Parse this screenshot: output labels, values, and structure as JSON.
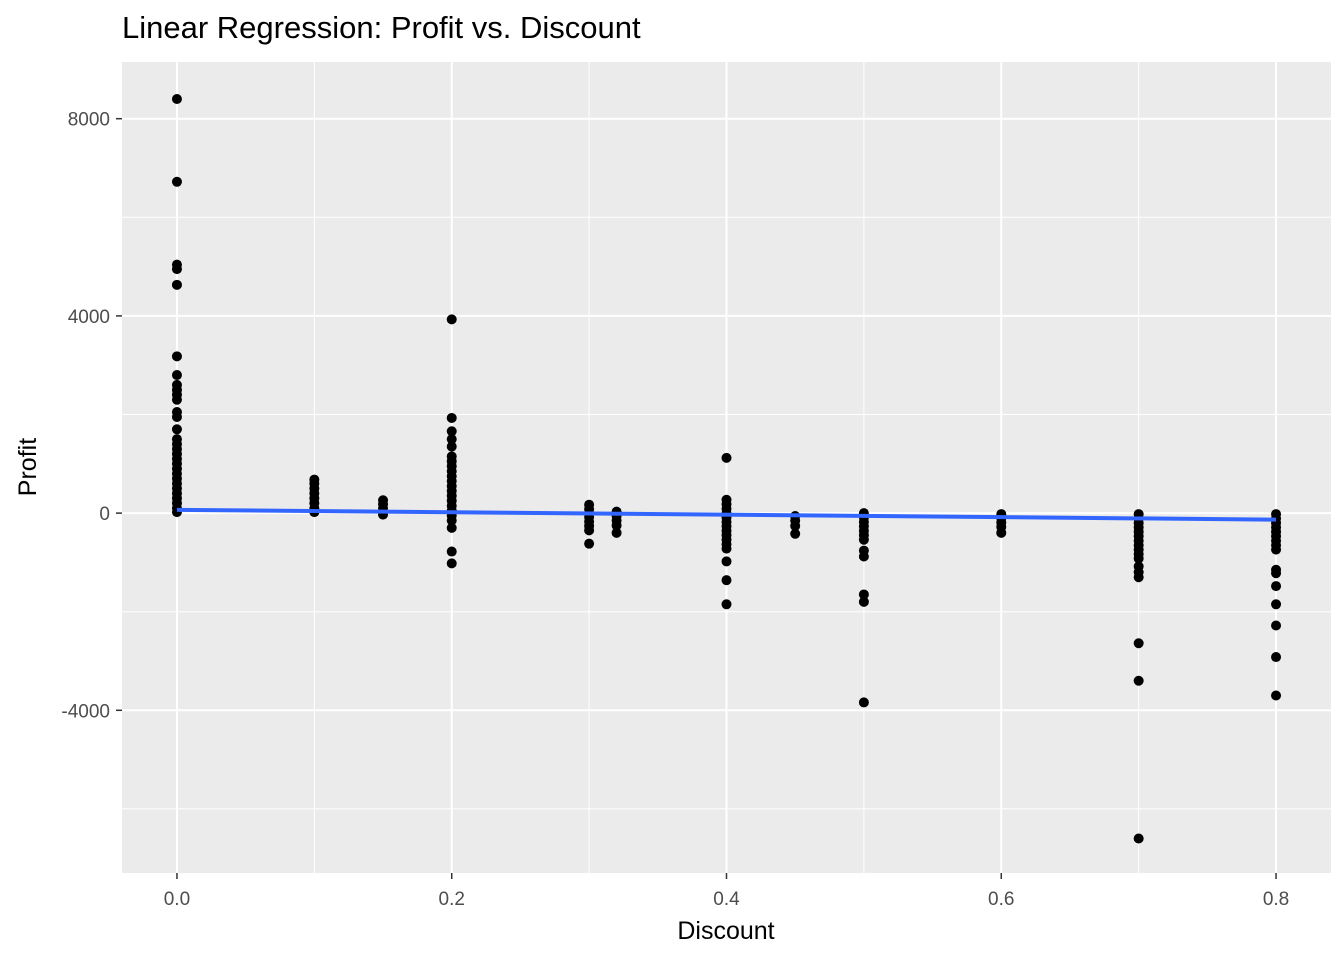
{
  "chart_data": {
    "type": "scatter",
    "title": "Linear Regression: Profit vs. Discount",
    "xlabel": "Discount",
    "ylabel": "Profit",
    "xlim": [
      -0.04,
      0.84
    ],
    "ylim": [
      -7300,
      9150
    ],
    "x_ticks": [
      0.0,
      0.2,
      0.4,
      0.6,
      0.8
    ],
    "x_tick_labels": [
      "0.0",
      "0.2",
      "0.4",
      "0.6",
      "0.8"
    ],
    "x_minor_ticks": [
      0.1,
      0.3,
      0.5,
      0.7
    ],
    "y_ticks": [
      -4000,
      0,
      4000,
      8000
    ],
    "y_tick_labels": [
      "-4000",
      "0",
      "4000",
      "8000"
    ],
    "y_minor_ticks": [
      -6000,
      -2000,
      2000,
      6000
    ],
    "grid": true,
    "legend": "none",
    "colors": {
      "panel_background": "#ebebeb",
      "grid": "#ffffff",
      "points": "#000000",
      "regression_line": "#3366ff"
    },
    "series": [
      {
        "points": [
          {
            "x": 0.0,
            "y": 8400
          },
          {
            "x": 0.0,
            "y": 6720
          },
          {
            "x": 0.0,
            "y": 5040
          },
          {
            "x": 0.0,
            "y": 4950
          },
          {
            "x": 0.0,
            "y": 4630
          },
          {
            "x": 0.0,
            "y": 3180
          },
          {
            "x": 0.0,
            "y": 2800
          },
          {
            "x": 0.0,
            "y": 2600
          },
          {
            "x": 0.0,
            "y": 2500
          },
          {
            "x": 0.0,
            "y": 2400
          },
          {
            "x": 0.0,
            "y": 2300
          },
          {
            "x": 0.0,
            "y": 2050
          },
          {
            "x": 0.0,
            "y": 1950
          },
          {
            "x": 0.0,
            "y": 1700
          },
          {
            "x": 0.0,
            "y": 1500
          },
          {
            "x": 0.0,
            "y": 1400
          },
          {
            "x": 0.0,
            "y": 1300
          },
          {
            "x": 0.0,
            "y": 1200
          },
          {
            "x": 0.0,
            "y": 1100
          },
          {
            "x": 0.0,
            "y": 1000
          },
          {
            "x": 0.0,
            "y": 900
          },
          {
            "x": 0.0,
            "y": 800
          },
          {
            "x": 0.0,
            "y": 700
          },
          {
            "x": 0.0,
            "y": 600
          },
          {
            "x": 0.0,
            "y": 500
          },
          {
            "x": 0.0,
            "y": 400
          },
          {
            "x": 0.0,
            "y": 300
          },
          {
            "x": 0.0,
            "y": 200
          },
          {
            "x": 0.0,
            "y": 100
          },
          {
            "x": 0.0,
            "y": 20
          },
          {
            "x": 0.1,
            "y": 680
          },
          {
            "x": 0.1,
            "y": 600
          },
          {
            "x": 0.1,
            "y": 500
          },
          {
            "x": 0.1,
            "y": 400
          },
          {
            "x": 0.1,
            "y": 300
          },
          {
            "x": 0.1,
            "y": 200
          },
          {
            "x": 0.1,
            "y": 100
          },
          {
            "x": 0.1,
            "y": 20
          },
          {
            "x": 0.15,
            "y": 260
          },
          {
            "x": 0.15,
            "y": 180
          },
          {
            "x": 0.15,
            "y": 100
          },
          {
            "x": 0.15,
            "y": 20
          },
          {
            "x": 0.15,
            "y": -30
          },
          {
            "x": 0.2,
            "y": 3930
          },
          {
            "x": 0.2,
            "y": 1930
          },
          {
            "x": 0.2,
            "y": 1660
          },
          {
            "x": 0.2,
            "y": 1500
          },
          {
            "x": 0.2,
            "y": 1350
          },
          {
            "x": 0.2,
            "y": 1150
          },
          {
            "x": 0.2,
            "y": 1050
          },
          {
            "x": 0.2,
            "y": 950
          },
          {
            "x": 0.2,
            "y": 850
          },
          {
            "x": 0.2,
            "y": 750
          },
          {
            "x": 0.2,
            "y": 650
          },
          {
            "x": 0.2,
            "y": 550
          },
          {
            "x": 0.2,
            "y": 450
          },
          {
            "x": 0.2,
            "y": 350
          },
          {
            "x": 0.2,
            "y": 250
          },
          {
            "x": 0.2,
            "y": 150
          },
          {
            "x": 0.2,
            "y": 50
          },
          {
            "x": 0.2,
            "y": -50
          },
          {
            "x": 0.2,
            "y": -150
          },
          {
            "x": 0.2,
            "y": -300
          },
          {
            "x": 0.2,
            "y": -780
          },
          {
            "x": 0.2,
            "y": -1020
          },
          {
            "x": 0.3,
            "y": 170
          },
          {
            "x": 0.3,
            "y": 80
          },
          {
            "x": 0.3,
            "y": 0
          },
          {
            "x": 0.3,
            "y": -80
          },
          {
            "x": 0.3,
            "y": -170
          },
          {
            "x": 0.3,
            "y": -260
          },
          {
            "x": 0.3,
            "y": -350
          },
          {
            "x": 0.3,
            "y": -620
          },
          {
            "x": 0.32,
            "y": 30
          },
          {
            "x": 0.32,
            "y": -60
          },
          {
            "x": 0.32,
            "y": -150
          },
          {
            "x": 0.32,
            "y": -250
          },
          {
            "x": 0.32,
            "y": -400
          },
          {
            "x": 0.4,
            "y": 1120
          },
          {
            "x": 0.4,
            "y": 270
          },
          {
            "x": 0.4,
            "y": 180
          },
          {
            "x": 0.4,
            "y": 90
          },
          {
            "x": 0.4,
            "y": 0
          },
          {
            "x": 0.4,
            "y": -90
          },
          {
            "x": 0.4,
            "y": -180
          },
          {
            "x": 0.4,
            "y": -270
          },
          {
            "x": 0.4,
            "y": -360
          },
          {
            "x": 0.4,
            "y": -450
          },
          {
            "x": 0.4,
            "y": -540
          },
          {
            "x": 0.4,
            "y": -630
          },
          {
            "x": 0.4,
            "y": -720
          },
          {
            "x": 0.4,
            "y": -980
          },
          {
            "x": 0.4,
            "y": -1360
          },
          {
            "x": 0.4,
            "y": -1850
          },
          {
            "x": 0.45,
            "y": -60
          },
          {
            "x": 0.45,
            "y": -150
          },
          {
            "x": 0.45,
            "y": -260
          },
          {
            "x": 0.45,
            "y": -420
          },
          {
            "x": 0.5,
            "y": 0
          },
          {
            "x": 0.5,
            "y": -90
          },
          {
            "x": 0.5,
            "y": -180
          },
          {
            "x": 0.5,
            "y": -270
          },
          {
            "x": 0.5,
            "y": -360
          },
          {
            "x": 0.5,
            "y": -450
          },
          {
            "x": 0.5,
            "y": -540
          },
          {
            "x": 0.5,
            "y": -760
          },
          {
            "x": 0.5,
            "y": -880
          },
          {
            "x": 0.5,
            "y": -1650
          },
          {
            "x": 0.5,
            "y": -1800
          },
          {
            "x": 0.5,
            "y": -3840
          },
          {
            "x": 0.6,
            "y": -20
          },
          {
            "x": 0.6,
            "y": -100
          },
          {
            "x": 0.6,
            "y": -190
          },
          {
            "x": 0.6,
            "y": -280
          },
          {
            "x": 0.6,
            "y": -400
          },
          {
            "x": 0.7,
            "y": -20
          },
          {
            "x": 0.7,
            "y": -110
          },
          {
            "x": 0.7,
            "y": -200
          },
          {
            "x": 0.7,
            "y": -290
          },
          {
            "x": 0.7,
            "y": -380
          },
          {
            "x": 0.7,
            "y": -470
          },
          {
            "x": 0.7,
            "y": -560
          },
          {
            "x": 0.7,
            "y": -650
          },
          {
            "x": 0.7,
            "y": -740
          },
          {
            "x": 0.7,
            "y": -830
          },
          {
            "x": 0.7,
            "y": -920
          },
          {
            "x": 0.7,
            "y": -1080
          },
          {
            "x": 0.7,
            "y": -1200
          },
          {
            "x": 0.7,
            "y": -1300
          },
          {
            "x": 0.7,
            "y": -2640
          },
          {
            "x": 0.7,
            "y": -3400
          },
          {
            "x": 0.7,
            "y": -6600
          },
          {
            "x": 0.8,
            "y": -20
          },
          {
            "x": 0.8,
            "y": -110
          },
          {
            "x": 0.8,
            "y": -200
          },
          {
            "x": 0.8,
            "y": -290
          },
          {
            "x": 0.8,
            "y": -380
          },
          {
            "x": 0.8,
            "y": -470
          },
          {
            "x": 0.8,
            "y": -560
          },
          {
            "x": 0.8,
            "y": -650
          },
          {
            "x": 0.8,
            "y": -740
          },
          {
            "x": 0.8,
            "y": -1150
          },
          {
            "x": 0.8,
            "y": -1220
          },
          {
            "x": 0.8,
            "y": -1480
          },
          {
            "x": 0.8,
            "y": -1850
          },
          {
            "x": 0.8,
            "y": -2280
          },
          {
            "x": 0.8,
            "y": -2920
          },
          {
            "x": 0.8,
            "y": -3700
          }
        ]
      }
    ],
    "regression_line": {
      "x": [
        0.0,
        0.8
      ],
      "y": [
        66,
        -132
      ]
    }
  }
}
